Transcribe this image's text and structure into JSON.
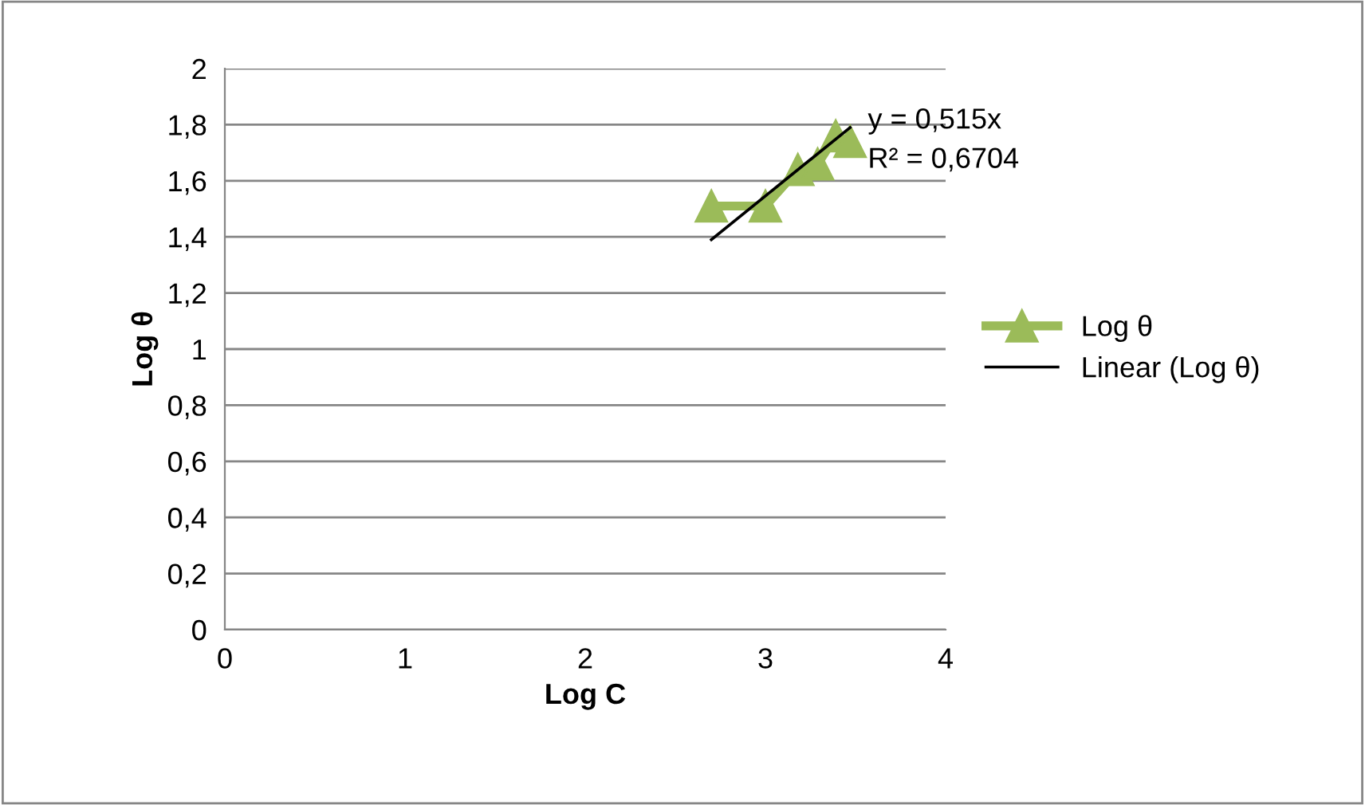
{
  "chart_data": {
    "type": "line",
    "xlabel": "Log C",
    "ylabel": "Log θ",
    "series": [
      {
        "name": "Log θ",
        "color": "#9bbb59",
        "marker": "triangle",
        "x": [
          2.7,
          3.0,
          3.18,
          3.29,
          3.39,
          3.47
        ],
        "values": [
          1.51,
          1.51,
          1.64,
          1.66,
          1.76,
          1.74
        ]
      },
      {
        "name": "Linear (Log θ)",
        "color": "#000000",
        "marker": "none",
        "x": [
          2.7,
          3.47
        ],
        "values": [
          1.39,
          1.79
        ]
      }
    ],
    "annotations": [
      {
        "text": "y = 0,515x\nR² = 0,6704",
        "x": 3.47,
        "y": 1.79
      }
    ],
    "xlim": [
      0,
      4
    ],
    "xticks": [
      0,
      1,
      2,
      3,
      4
    ],
    "ylim": [
      0,
      2
    ],
    "yticks": [
      0,
      {
        "value": 0.2,
        "label": "0,2"
      },
      {
        "value": 0.4,
        "label": "0,4"
      },
      {
        "value": 0.6,
        "label": "0,6"
      },
      {
        "value": 0.8,
        "label": "0,8"
      },
      1,
      {
        "value": 1.2,
        "label": "1,2"
      },
      {
        "value": 1.4,
        "label": "1,4"
      },
      {
        "value": 1.6,
        "label": "1,6"
      },
      {
        "value": 1.8,
        "label": "1,8"
      },
      2
    ],
    "grid": "y",
    "legend": "right"
  }
}
